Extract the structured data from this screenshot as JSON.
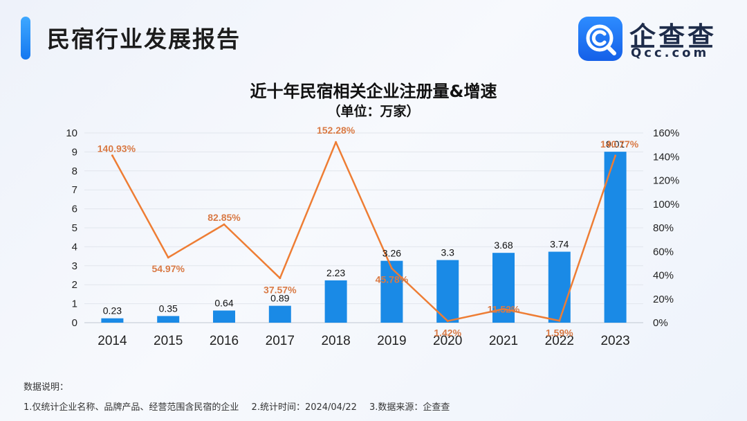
{
  "header": {
    "title": "民宿行业发展报告",
    "logo_name": "企查查",
    "logo_sub": "Qcc.com"
  },
  "colors": {
    "bar": "#1a8ae6",
    "line": "#ee7d34",
    "line_label": "#d97a45",
    "accent": "#1a7cf0"
  },
  "chart_data": {
    "type": "bar",
    "title": "近十年民宿相关企业注册量&增速",
    "subtitle": "（单位：万家）",
    "categories": [
      "2014",
      "2015",
      "2016",
      "2017",
      "2018",
      "2019",
      "2020",
      "2021",
      "2022",
      "2023"
    ],
    "series": [
      {
        "type": "bar",
        "values": [
          0.23,
          0.35,
          0.64,
          0.89,
          2.23,
          3.26,
          3.3,
          3.68,
          3.74,
          9.01
        ],
        "labels": [
          "0.23",
          "0.35",
          "0.64",
          "0.89",
          "2.23",
          "3.26",
          "3.3",
          "3.68",
          "3.74",
          "9.01"
        ],
        "axis": "left"
      },
      {
        "type": "line",
        "values": [
          140.93,
          54.97,
          82.85,
          37.57,
          152.28,
          45.78,
          1.42,
          11.52,
          1.59,
          140.77
        ],
        "labels": [
          "140.93%",
          "54.97%",
          "82.85%",
          "37.57%",
          "152.28%",
          "45.78%",
          "1.42%",
          "11.52%",
          "1.59%",
          "140.77%"
        ],
        "axis": "right"
      }
    ],
    "y_left": {
      "min": 0,
      "max": 10,
      "ticks": [
        "0",
        "1",
        "2",
        "3",
        "4",
        "5",
        "6",
        "7",
        "8",
        "9",
        "10"
      ]
    },
    "y_right": {
      "min": 0,
      "max": 160,
      "ticks": [
        "0%",
        "20%",
        "40%",
        "60%",
        "80%",
        "100%",
        "120%",
        "140%",
        "160%"
      ]
    },
    "grid": true
  },
  "notes": {
    "heading": "数据说明：",
    "items": [
      "1.仅统计企业名称、品牌产品、经营范围含民宿的企业",
      "2.统计时间：2024/04/22",
      "3.数据来源：企查查"
    ]
  }
}
